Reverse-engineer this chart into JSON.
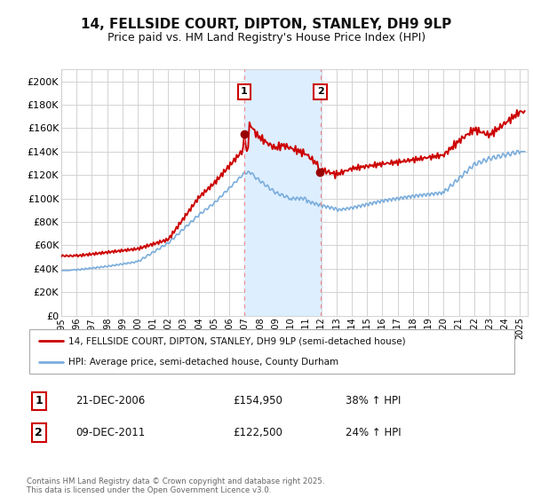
{
  "title": "14, FELLSIDE COURT, DIPTON, STANLEY, DH9 9LP",
  "subtitle": "Price paid vs. HM Land Registry's House Price Index (HPI)",
  "legend_line1": "14, FELLSIDE COURT, DIPTON, STANLEY, DH9 9LP (semi-detached house)",
  "legend_line2": "HPI: Average price, semi-detached house, County Durham",
  "footnote": "Contains HM Land Registry data © Crown copyright and database right 2025.\nThis data is licensed under the Open Government Licence v3.0.",
  "transaction1_label": "1",
  "transaction1_date": "21-DEC-2006",
  "transaction1_price": "£154,950",
  "transaction1_hpi": "38% ↑ HPI",
  "transaction2_label": "2",
  "transaction2_date": "09-DEC-2011",
  "transaction2_price": "£122,500",
  "transaction2_hpi": "24% ↑ HPI",
  "red_color": "#cc0000",
  "blue_color": "#7aaddc",
  "dot_color": "#990000",
  "shade_color": "#ddeeff",
  "dashed_color": "#ee8888",
  "background_color": "#ffffff",
  "grid_color": "#cccccc",
  "ylim": [
    0,
    210000
  ],
  "ytick_values": [
    0,
    20000,
    40000,
    60000,
    80000,
    100000,
    120000,
    140000,
    160000,
    180000,
    200000
  ],
  "year_start": 1995,
  "year_end": 2025,
  "transaction1_year": 2006.96,
  "transaction2_year": 2011.94,
  "title_fontsize": 11,
  "subtitle_fontsize": 9
}
